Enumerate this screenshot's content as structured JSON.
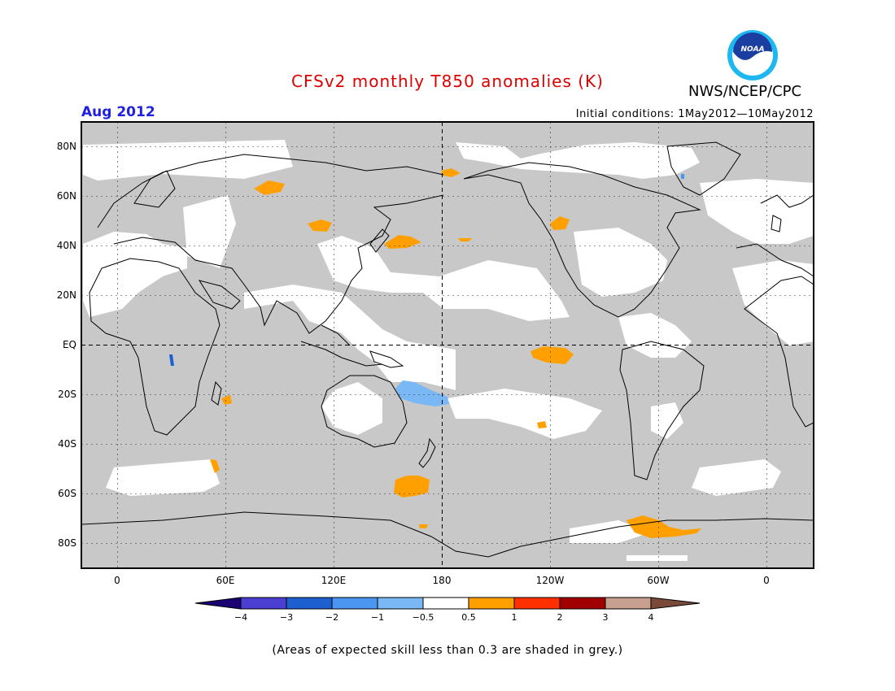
{
  "title": "CFSv2 monthly T850 anomalies (K)",
  "agency": "NWS/NCEP/CPC",
  "valid_month": "Aug 2012",
  "initial_conditions": "Initial conditions: 1May2012—10May2012",
  "lat_labels": [
    "80N",
    "60N",
    "40N",
    "20N",
    "EQ",
    "20S",
    "40S",
    "60S",
    "80S"
  ],
  "lon_labels": [
    "0",
    "60E",
    "120E",
    "180",
    "120W",
    "60W",
    "0"
  ],
  "colorbar": {
    "ticks": [
      "−4",
      "−3",
      "−2",
      "−1",
      "−0.5",
      "0.5",
      "1",
      "2",
      "3",
      "4"
    ],
    "colors": [
      "#1a0073",
      "#4a3fd0",
      "#1e5fd0",
      "#4a96f0",
      "#7ab8f5",
      "#ffffff",
      "#ffa000",
      "#ff3000",
      "#a00000",
      "#c8a090",
      "#7a4a38"
    ]
  },
  "note": "(Areas of expected skill less than 0.3 are shaded in grey.)",
  "colors": {
    "title": "#e00000",
    "month": "#2020e0",
    "skill_mask": "#c8c8c8"
  },
  "logo_icon": "noaa-logo-icon"
}
